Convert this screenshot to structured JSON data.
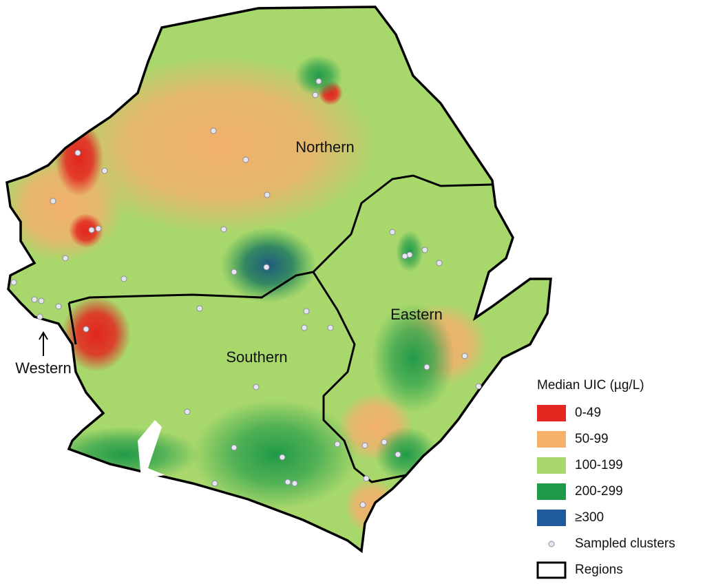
{
  "map": {
    "regions": [
      "Northern",
      "Eastern",
      "Southern",
      "Western"
    ],
    "legend": {
      "title": "Median UIC (µg/L)",
      "items": [
        {
          "label": "0-49",
          "color": "#e3261f"
        },
        {
          "label": "50-99",
          "color": "#f7b06a"
        },
        {
          "label": "100-199",
          "color": "#a8d86c"
        },
        {
          "label": "200-299",
          "color": "#1f9a48"
        },
        {
          "label": "≥300",
          "color": "#1f5a9a"
        }
      ],
      "clusters_label": "Sampled clusters",
      "regions_label": "Regions"
    }
  }
}
